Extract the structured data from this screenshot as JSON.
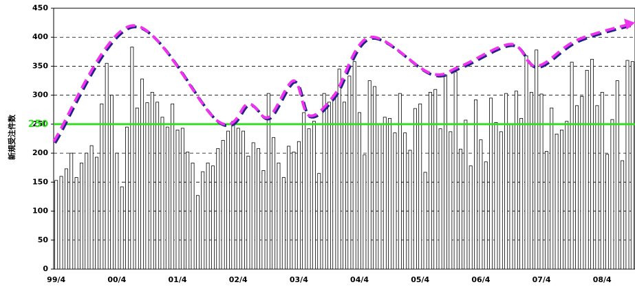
{
  "chart_data": {
    "type": "bar",
    "y_label": "新規受注件数",
    "categories": [
      "99/4",
      null,
      null,
      null,
      null,
      null,
      null,
      null,
      null,
      null,
      null,
      null,
      "00/4",
      null,
      null,
      null,
      null,
      null,
      null,
      null,
      null,
      null,
      null,
      null,
      "01/4",
      null,
      null,
      null,
      null,
      null,
      null,
      null,
      null,
      null,
      null,
      null,
      "02/4",
      null,
      null,
      null,
      null,
      null,
      null,
      null,
      null,
      null,
      null,
      null,
      "03/4",
      null,
      null,
      null,
      null,
      null,
      null,
      null,
      null,
      null,
      null,
      null,
      "04/4",
      null,
      null,
      null,
      null,
      null,
      null,
      null,
      null,
      null,
      null,
      null,
      "05/4",
      null,
      null,
      null,
      null,
      null,
      null,
      null,
      null,
      null,
      null,
      null,
      "06/4",
      null,
      null,
      null,
      null,
      null,
      null,
      null,
      null,
      null,
      null,
      null,
      "07/4",
      null,
      null,
      null,
      null,
      null,
      null,
      null,
      null,
      null,
      null,
      null,
      "08/4",
      null,
      null,
      null,
      null,
      null,
      null
    ],
    "values": [
      153,
      160,
      173,
      200,
      158,
      183,
      200,
      213,
      193,
      285,
      355,
      300,
      200,
      142,
      245,
      383,
      278,
      328,
      287,
      305,
      288,
      262,
      245,
      285,
      240,
      243,
      202,
      183,
      127,
      168,
      183,
      178,
      208,
      222,
      238,
      255,
      243,
      238,
      195,
      218,
      208,
      170,
      303,
      227,
      183,
      158,
      212,
      202,
      220,
      270,
      242,
      255,
      165,
      303,
      288,
      298,
      345,
      288,
      333,
      358,
      270,
      197,
      325,
      315,
      250,
      262,
      260,
      235,
      303,
      235,
      205,
      277,
      285,
      167,
      305,
      310,
      242,
      335,
      237,
      340,
      207,
      257,
      178,
      292,
      223,
      185,
      295,
      253,
      237,
      303,
      250,
      307,
      260,
      368,
      305,
      378,
      302,
      203,
      278,
      233,
      240,
      255,
      357,
      282,
      298,
      343,
      362,
      282,
      305,
      198,
      258,
      325,
      187,
      360,
      358
    ],
    "color": "#ffffff",
    "edge_color": "#000000",
    "ylim": [
      0,
      450
    ],
    "yticks": [
      0,
      50,
      100,
      150,
      200,
      250,
      300,
      350,
      400,
      450
    ],
    "grid": true,
    "reference_line": {
      "value": 250,
      "label": "250",
      "color": "#33dd22"
    },
    "trend": {
      "x": [
        -0.5,
        15,
        32,
        38,
        42,
        47,
        50,
        55,
        62,
        74,
        80,
        90,
        95,
        103,
        114.5
      ],
      "values": [
        220,
        420,
        255,
        285,
        262,
        325,
        265,
        300,
        400,
        338,
        350,
        388,
        350,
        395,
        425
      ],
      "color": "#ee33ee",
      "shadow_color": "#222288"
    }
  }
}
